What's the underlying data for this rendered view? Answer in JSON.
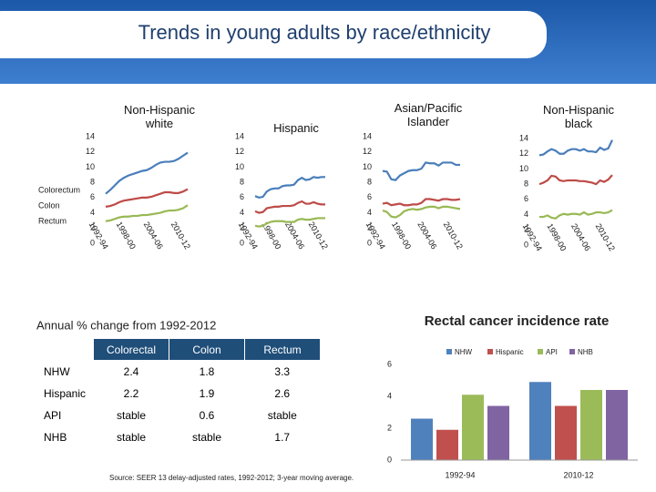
{
  "title": "Trends in young adults by race/ethnicity",
  "chart_data": [
    {
      "type": "line",
      "title": "Non-Hispanic white",
      "legend": "left",
      "categories": [
        "1992-94",
        null,
        null,
        null,
        null,
        null,
        "1998-00",
        null,
        null,
        null,
        null,
        null,
        "2004-06",
        null,
        null,
        null,
        null,
        null,
        "2010-12"
      ],
      "ylim": [
        0,
        14
      ],
      "yticks": [
        0,
        2,
        4,
        6,
        8,
        10,
        12,
        14
      ],
      "series": [
        {
          "name": "Colorectum",
          "color": "#4a7ebb",
          "values": [
            6.5,
            7.0,
            7.6,
            8.2,
            8.6,
            8.9,
            9.1,
            9.3,
            9.5,
            9.6,
            9.9,
            10.3,
            10.6,
            10.7,
            10.7,
            10.8,
            11.1,
            11.5,
            11.9
          ]
        },
        {
          "name": "Colon",
          "color": "#be4b48",
          "values": [
            4.8,
            4.9,
            5.1,
            5.4,
            5.6,
            5.7,
            5.8,
            5.9,
            6.0,
            6.0,
            6.1,
            6.3,
            6.5,
            6.7,
            6.7,
            6.6,
            6.6,
            6.8,
            7.1
          ]
        },
        {
          "name": "Rectum",
          "color": "#98b954",
          "values": [
            2.9,
            3.0,
            3.2,
            3.4,
            3.5,
            3.5,
            3.6,
            3.6,
            3.7,
            3.7,
            3.8,
            3.9,
            4.0,
            4.2,
            4.3,
            4.3,
            4.4,
            4.6,
            5.0
          ]
        }
      ]
    },
    {
      "type": "line",
      "title": "Hispanic",
      "categories": [
        "1992-94",
        null,
        null,
        null,
        null,
        null,
        "1998-00",
        null,
        null,
        null,
        null,
        null,
        "2004-06",
        null,
        null,
        null,
        null,
        null,
        "2010-12"
      ],
      "ylim": [
        0,
        14
      ],
      "yticks": [
        0,
        2,
        4,
        6,
        8,
        10,
        12,
        14
      ],
      "series": [
        {
          "color": "#4a7ebb",
          "values": [
            6.2,
            6.0,
            6.1,
            6.8,
            7.1,
            7.2,
            7.2,
            7.5,
            7.6,
            7.6,
            7.7,
            8.3,
            8.6,
            8.3,
            8.4,
            8.7,
            8.6,
            8.7,
            8.7
          ]
        },
        {
          "color": "#be4b48",
          "values": [
            4.2,
            4.0,
            4.1,
            4.6,
            4.7,
            4.8,
            4.8,
            4.9,
            4.9,
            4.9,
            5.0,
            5.3,
            5.5,
            5.2,
            5.2,
            5.4,
            5.2,
            5.1,
            5.1
          ]
        },
        {
          "color": "#98b954",
          "values": [
            2.3,
            2.2,
            2.3,
            2.6,
            2.8,
            2.9,
            2.9,
            2.9,
            2.8,
            2.8,
            2.8,
            3.1,
            3.2,
            3.1,
            3.1,
            3.2,
            3.3,
            3.3,
            3.3
          ]
        }
      ]
    },
    {
      "type": "line",
      "title": "Asian/Pacific Islander",
      "categories": [
        "1992-94",
        null,
        null,
        null,
        null,
        null,
        "1998-00",
        null,
        null,
        null,
        null,
        null,
        "2004-06",
        null,
        null,
        null,
        null,
        null,
        "2010-12"
      ],
      "ylim": [
        0,
        14
      ],
      "yticks": [
        0,
        2,
        4,
        6,
        8,
        10,
        12,
        14
      ],
      "series": [
        {
          "color": "#4a7ebb",
          "values": [
            9.5,
            9.4,
            8.4,
            8.3,
            8.9,
            9.2,
            9.5,
            9.6,
            9.6,
            9.8,
            10.6,
            10.5,
            10.5,
            10.2,
            10.6,
            10.6,
            10.6,
            10.3,
            10.3
          ]
        },
        {
          "color": "#be4b48",
          "values": [
            5.2,
            5.3,
            5.0,
            5.1,
            5.2,
            5.0,
            5.0,
            5.1,
            5.1,
            5.3,
            5.8,
            5.8,
            5.7,
            5.6,
            5.8,
            5.8,
            5.7,
            5.7,
            5.8
          ]
        },
        {
          "color": "#98b954",
          "values": [
            4.3,
            4.1,
            3.5,
            3.4,
            3.7,
            4.2,
            4.4,
            4.5,
            4.4,
            4.5,
            4.7,
            4.8,
            4.8,
            4.6,
            4.8,
            4.8,
            4.7,
            4.6,
            4.5
          ]
        }
      ]
    },
    {
      "type": "line",
      "title": "Non-Hispanic black",
      "categories": [
        "1992-94",
        null,
        null,
        null,
        null,
        null,
        "1998-00",
        null,
        null,
        null,
        null,
        null,
        "2004-06",
        null,
        null,
        null,
        null,
        null,
        "2010-12"
      ],
      "ylim": [
        0,
        14
      ],
      "yticks": [
        0,
        2,
        4,
        6,
        8,
        10,
        12,
        14
      ],
      "series": [
        {
          "color": "#4a7ebb",
          "values": [
            11.8,
            11.9,
            12.3,
            12.6,
            12.4,
            12.0,
            12.0,
            12.4,
            12.6,
            12.6,
            12.4,
            12.6,
            12.3,
            12.3,
            12.2,
            12.8,
            12.5,
            12.7,
            13.8
          ]
        },
        {
          "color": "#be4b48",
          "values": [
            8.0,
            8.2,
            8.5,
            9.1,
            9.0,
            8.5,
            8.4,
            8.5,
            8.5,
            8.5,
            8.4,
            8.4,
            8.3,
            8.2,
            8.0,
            8.5,
            8.3,
            8.6,
            9.2
          ]
        },
        {
          "color": "#98b954",
          "values": [
            3.7,
            3.7,
            3.9,
            3.6,
            3.5,
            3.9,
            4.1,
            4.0,
            4.1,
            4.1,
            4.0,
            4.3,
            4.0,
            4.1,
            4.3,
            4.3,
            4.2,
            4.3,
            4.6
          ]
        }
      ]
    },
    {
      "type": "bar",
      "title": "Rectal cancer incidence rate",
      "legend": "top",
      "categories": [
        "1992-94",
        "2010-12"
      ],
      "ylim": [
        0,
        6
      ],
      "yticks": [
        0,
        2,
        4,
        6
      ],
      "series": [
        {
          "name": "NHW",
          "color": "#4f81bd",
          "values": [
            2.6,
            4.9
          ]
        },
        {
          "name": "Hispanic",
          "color": "#c0504d",
          "values": [
            1.9,
            3.4
          ]
        },
        {
          "name": "API",
          "color": "#9bbb59",
          "values": [
            4.1,
            4.4
          ]
        },
        {
          "name": "NHB",
          "color": "#8064a2",
          "values": [
            3.4,
            4.4
          ]
        }
      ]
    }
  ],
  "table": {
    "caption": "Annual % change from 1992-2012",
    "header": [
      "Colorectal",
      "Colon",
      "Rectum"
    ],
    "rows": [
      [
        "NHW",
        "2.4",
        "1.8",
        "3.3"
      ],
      [
        "Hispanic",
        "2.2",
        "1.9",
        "2.6"
      ],
      [
        "API",
        "stable",
        "0.6",
        "stable"
      ],
      [
        "NHB",
        "stable",
        "stable",
        "1.7"
      ]
    ]
  },
  "source": "Source: SEER 13 delay-adjusted rates, 1992-2012; 3-year moving average."
}
